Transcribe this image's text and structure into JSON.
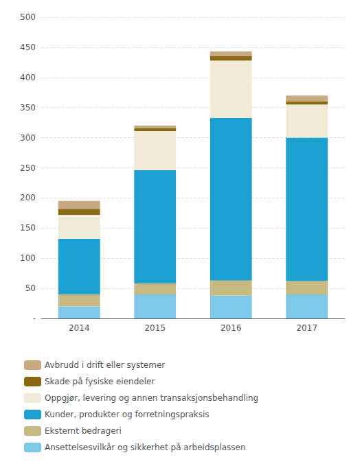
{
  "chart_data": {
    "type": "bar",
    "stacked": true,
    "categories": [
      "2014",
      "2015",
      "2016",
      "2017"
    ],
    "series": [
      {
        "name": "Ansettelsesvilkår og sikkerhet på arbeidsplassen",
        "color": "#7DC8E8",
        "values": [
          20,
          40,
          38,
          40
        ]
      },
      {
        "name": "Eksternt bedrageri",
        "color": "#C8B980",
        "values": [
          20,
          18,
          25,
          22
        ]
      },
      {
        "name": "Kunder, produkter og forretningspraksis",
        "color": "#1CA0D0",
        "values": [
          92,
          188,
          270,
          238
        ]
      },
      {
        "name": "Oppgjør, levering og annen transaksjonsbehandling",
        "color": "#F0EAD6",
        "values": [
          40,
          65,
          95,
          55
        ]
      },
      {
        "name": "Skade på fysiske eiendeler",
        "color": "#8B6914",
        "values": [
          10,
          5,
          7,
          5
        ]
      },
      {
        "name": "Avbrudd i drift eller systemer",
        "color": "#C8AA80",
        "values": [
          13,
          4,
          8,
          10
        ]
      }
    ],
    "ylim": [
      0,
      500
    ],
    "yticks": [
      {
        "value": 0,
        "label": "-"
      },
      50,
      100,
      150,
      200,
      250,
      300,
      350,
      400,
      450,
      500
    ],
    "grid": true,
    "legend": "bottom"
  }
}
